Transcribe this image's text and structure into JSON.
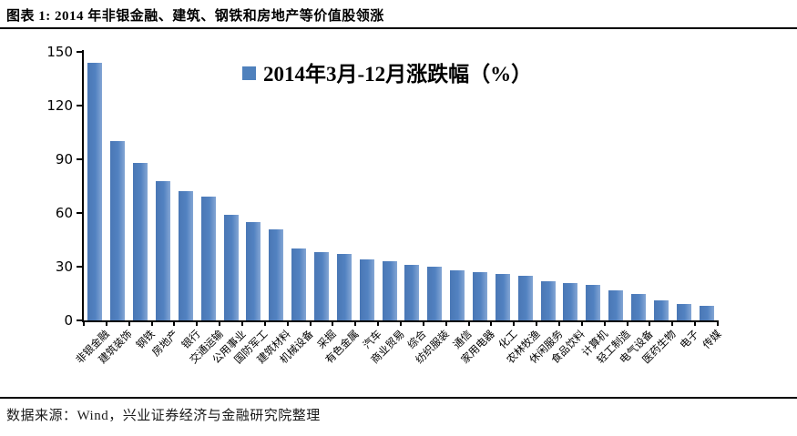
{
  "page": {
    "title": "图表 1: 2014 年非银金融、建筑、钢铁和房地产等价值股领涨",
    "footer": "数据来源：Wind，兴业证券经济与金融研究院整理"
  },
  "chart_data": {
    "type": "bar",
    "series_name": "2014年3月-12月涨跌幅（%）",
    "legend_position": "top-center",
    "bar_color": "#4F81BD",
    "grid": false,
    "ylim": [
      0,
      150
    ],
    "yticks": [
      0,
      30,
      60,
      90,
      120,
      150
    ],
    "categories": [
      "非银金融",
      "建筑装饰",
      "钢铁",
      "房地产",
      "银行",
      "交通运输",
      "公用事业",
      "国防军工",
      "建筑材料",
      "机械设备",
      "采掘",
      "有色金属",
      "汽车",
      "商业贸易",
      "综合",
      "纺织服装",
      "通信",
      "家用电器",
      "化工",
      "农林牧渔",
      "休闲服务",
      "食品饮料",
      "计算机",
      "轻工制造",
      "电气设备",
      "医药生物",
      "电子",
      "传媒"
    ],
    "values": [
      144,
      100,
      88,
      78,
      72,
      69,
      59,
      55,
      51,
      40,
      38,
      37,
      34,
      33,
      31,
      30,
      28,
      27,
      26,
      25,
      22,
      21,
      20,
      17,
      15,
      11,
      9,
      8
    ]
  }
}
